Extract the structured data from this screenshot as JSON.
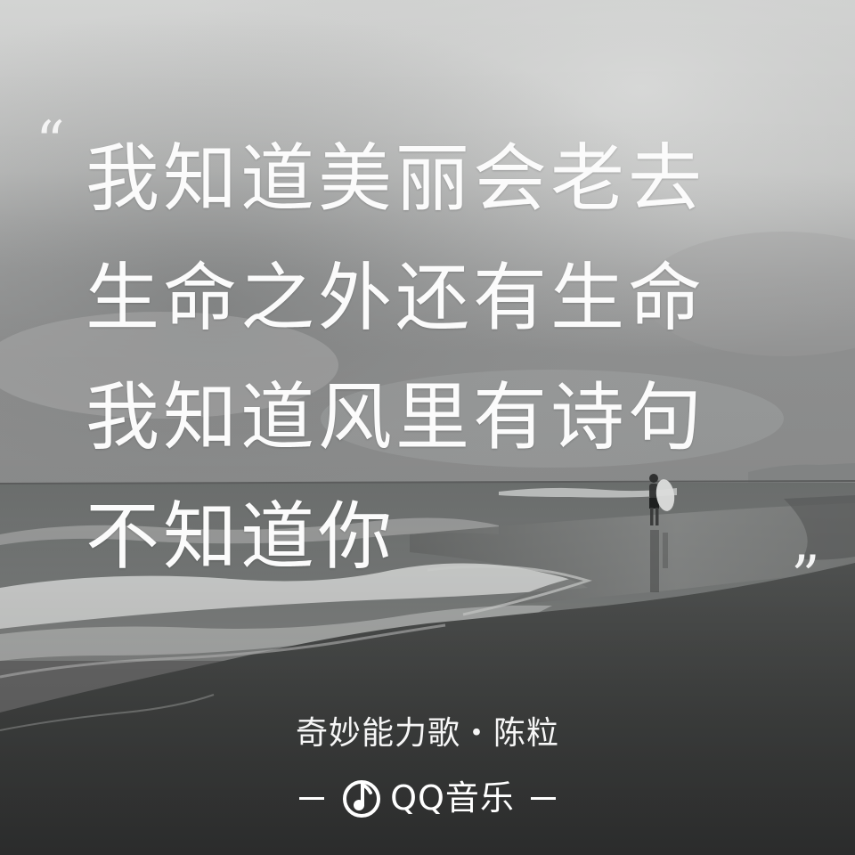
{
  "quote": {
    "open_mark": "“",
    "close_mark": "”",
    "lines": [
      "我知道美丽会老去",
      "生命之外还有生命",
      "我知道风里有诗句",
      "不知道你"
    ]
  },
  "song": {
    "credit": "奇妙能力歌・陈粒"
  },
  "brand": {
    "name": "QQ音乐",
    "icon": "qq-music-note-icon"
  },
  "colors": {
    "text": "#ffffff",
    "sky": "#c9cbca",
    "sea": "#777a79",
    "sand": "#3f3f3f"
  }
}
